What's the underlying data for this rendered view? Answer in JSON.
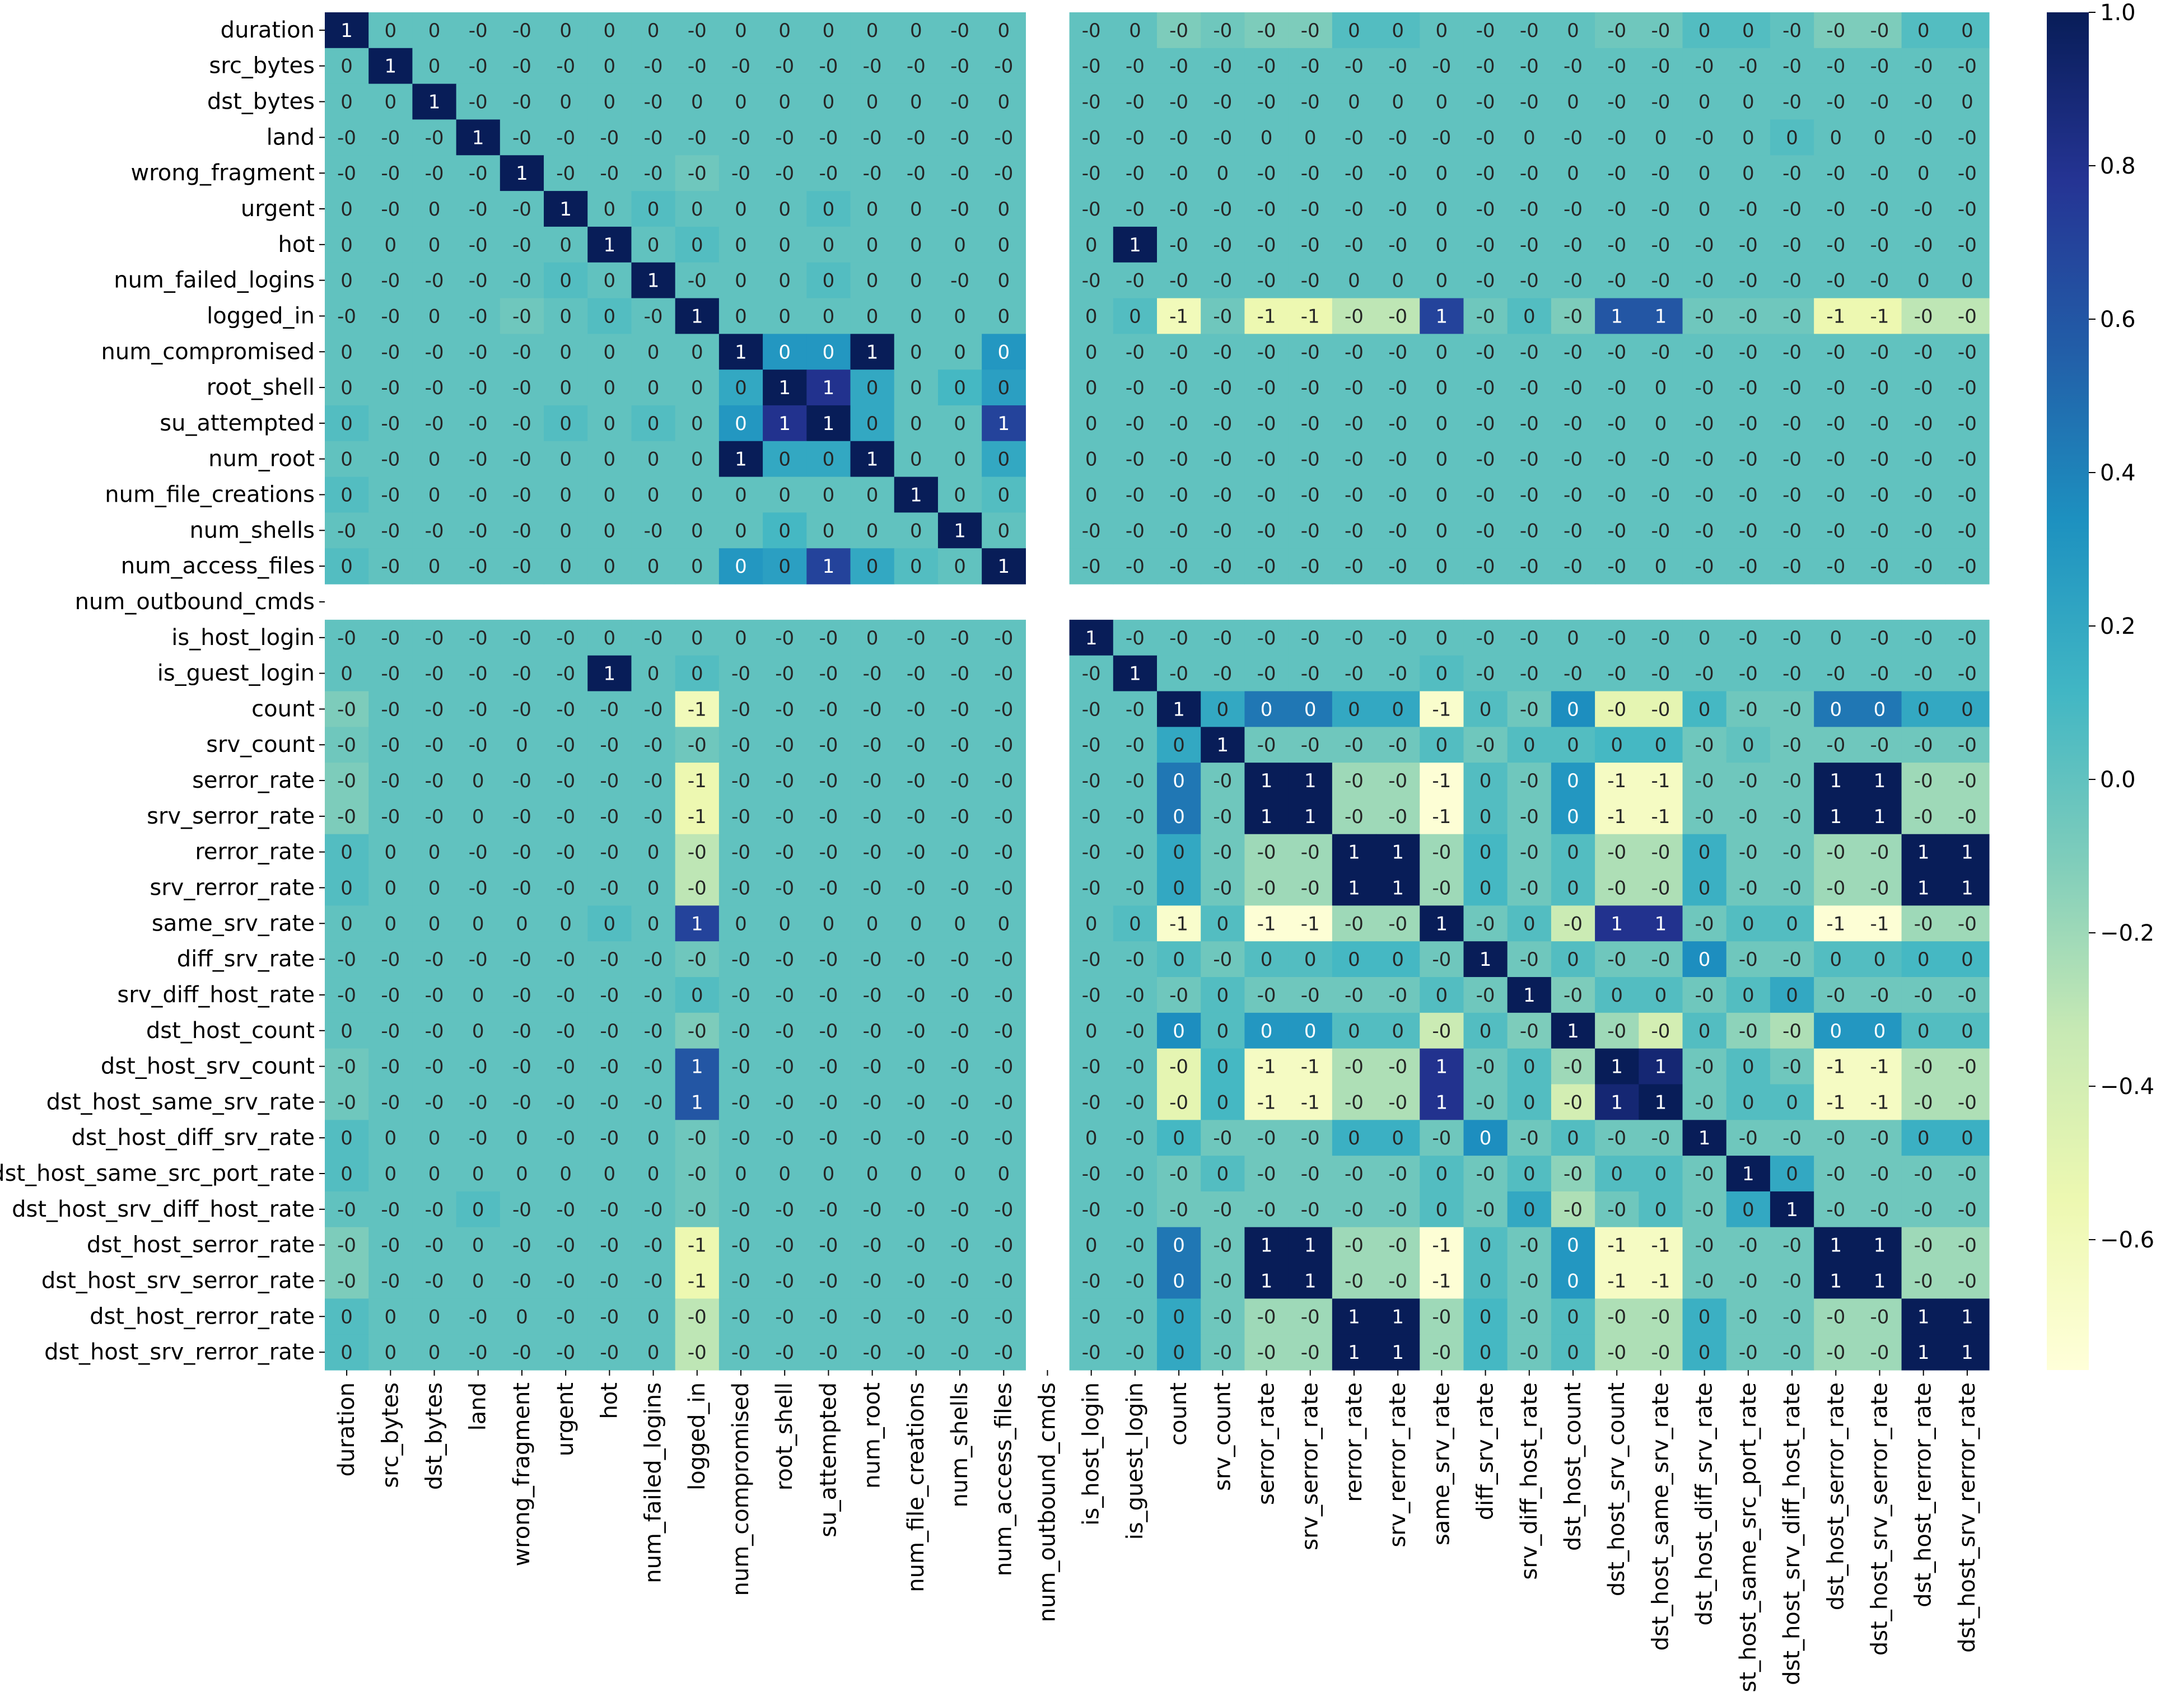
{
  "chart_data": {
    "type": "heatmap",
    "title": "",
    "colormap": "YlGnBu",
    "colorbar": {
      "vmin": -0.77,
      "vmax": 1.0,
      "ticks": [
        1.0,
        0.8,
        0.6,
        0.4,
        0.2,
        0.0,
        -0.2,
        -0.4,
        -0.6
      ],
      "tick_labels": [
        "1.0",
        "0.8",
        "0.6",
        "0.4",
        "0.2",
        "0.0",
        "−0.2",
        "−0.4",
        "−0.6"
      ]
    },
    "nan_index": 16,
    "labels": [
      "duration",
      "src_bytes",
      "dst_bytes",
      "land",
      "wrong_fragment",
      "urgent",
      "hot",
      "num_failed_logins",
      "logged_in",
      "num_compromised",
      "root_shell",
      "su_attempted",
      "num_root",
      "num_file_creations",
      "num_shells",
      "num_access_files",
      "num_outbound_cmds",
      "is_host_login",
      "is_guest_login",
      "count",
      "srv_count",
      "serror_rate",
      "srv_serror_rate",
      "rerror_rate",
      "srv_rerror_rate",
      "same_srv_rate",
      "diff_srv_rate",
      "srv_diff_host_rate",
      "dst_host_count",
      "dst_host_srv_count",
      "dst_host_same_srv_rate",
      "dst_host_diff_srv_rate",
      "dst_host_same_src_port_rate",
      "dst_host_srv_diff_host_rate",
      "dst_host_serror_rate",
      "dst_host_srv_serror_rate",
      "dst_host_rerror_rate",
      "dst_host_srv_rerror_rate"
    ],
    "values": [
      [
        1,
        0,
        0,
        0,
        0,
        0,
        0,
        0,
        0,
        0,
        0,
        0,
        0,
        0,
        0,
        0,
        null,
        0,
        0,
        -0.1,
        -0.05,
        -0.1,
        -0.1,
        0.05,
        0.05,
        0,
        0,
        0,
        0,
        -0.05,
        -0.05,
        0.05,
        0.05,
        0,
        -0.1,
        -0.1,
        0.05,
        0.05
      ],
      [
        0,
        1,
        0,
        0,
        0,
        0,
        0,
        0,
        0,
        0,
        0,
        0,
        0,
        0,
        0,
        0,
        null,
        0,
        0,
        0,
        0,
        0,
        0,
        0,
        0,
        0,
        0,
        0,
        0,
        0,
        0,
        0,
        0,
        0,
        0,
        0,
        0,
        0
      ],
      [
        0,
        0,
        1,
        0,
        0,
        0,
        0,
        0,
        0,
        0,
        0,
        0,
        0,
        0,
        0,
        0,
        null,
        0,
        0,
        0,
        0,
        0,
        0,
        0,
        0,
        0,
        0,
        0,
        0,
        0,
        0,
        0,
        0,
        0,
        0,
        0,
        0,
        0
      ],
      [
        0,
        0,
        0,
        1,
        0,
        0,
        0,
        0,
        0,
        0,
        0,
        0,
        0,
        0,
        0,
        0,
        null,
        0,
        0,
        0,
        0,
        0,
        0,
        0,
        0,
        0,
        0,
        0,
        0,
        0,
        0,
        0,
        0,
        0.05,
        0,
        0,
        0,
        0
      ],
      [
        0,
        0,
        0,
        0,
        1,
        0,
        0,
        0,
        -0.05,
        0,
        0,
        0,
        0,
        0,
        0,
        0,
        null,
        0,
        0,
        0,
        0,
        0,
        0,
        0,
        0,
        0,
        0,
        0,
        0,
        0,
        0,
        0,
        0,
        0,
        0,
        0,
        0,
        0
      ],
      [
        0,
        0,
        0,
        0,
        0,
        1,
        0,
        0.05,
        0,
        0,
        0,
        0.05,
        0,
        0,
        0,
        0,
        null,
        0,
        0,
        0,
        0,
        0,
        0,
        0,
        0,
        0,
        0,
        0,
        0,
        0,
        0,
        0,
        0,
        0,
        0,
        0,
        0,
        0
      ],
      [
        0,
        0,
        0,
        0,
        0,
        0,
        1,
        0,
        0.05,
        0,
        0,
        0,
        0,
        0,
        0,
        0,
        null,
        0,
        1,
        0,
        0,
        0,
        0,
        0,
        0,
        0,
        0,
        0,
        0,
        0,
        0,
        0,
        0,
        0,
        0,
        0,
        0,
        0
      ],
      [
        0,
        0,
        0,
        0,
        0,
        0.05,
        0,
        1,
        0,
        0,
        0,
        0.05,
        0,
        0,
        0,
        0,
        null,
        0,
        0,
        0,
        0,
        0,
        0,
        0,
        0,
        0,
        0,
        0,
        0,
        0,
        0,
        0,
        0,
        0,
        0,
        0,
        0,
        0
      ],
      [
        0,
        0,
        0,
        0,
        -0.05,
        0,
        0.05,
        0,
        1,
        0,
        0,
        0,
        0,
        0,
        0,
        0,
        null,
        0,
        0.05,
        -0.6,
        -0.05,
        -0.55,
        -0.55,
        -0.3,
        -0.3,
        0.7,
        -0.05,
        0.05,
        -0.1,
        0.6,
        0.6,
        -0.05,
        -0.05,
        -0.05,
        -0.55,
        -0.55,
        -0.3,
        -0.3
      ],
      [
        0,
        0,
        0,
        0,
        0,
        0,
        0,
        0,
        0,
        1,
        0.3,
        0.3,
        1,
        0,
        0,
        0.3,
        null,
        0,
        0,
        0,
        0,
        0,
        0,
        0,
        0,
        0,
        0,
        0,
        0,
        0,
        0,
        0,
        0,
        0,
        0,
        0,
        0,
        0
      ],
      [
        0,
        0,
        0,
        0,
        0,
        0,
        0,
        0,
        0,
        0.2,
        1,
        0.8,
        0.2,
        0,
        0.1,
        0.25,
        null,
        0,
        0,
        0,
        0,
        0,
        0,
        0,
        0,
        0,
        0,
        0,
        0,
        0,
        0,
        0,
        0,
        0,
        0,
        0,
        0,
        0
      ],
      [
        0.05,
        0,
        0,
        0,
        0,
        0.05,
        0,
        0.05,
        0,
        0.3,
        0.8,
        1,
        0.2,
        0,
        0,
        0.7,
        null,
        0,
        0,
        0,
        0,
        0,
        0,
        0,
        0,
        0,
        0,
        0,
        0,
        0,
        0,
        0,
        0,
        0,
        0,
        0,
        0,
        0
      ],
      [
        0,
        0,
        0,
        0,
        0,
        0,
        0,
        0,
        0,
        1,
        0.2,
        0.2,
        1,
        0,
        0,
        0.2,
        null,
        0,
        0,
        0,
        0,
        0,
        0,
        0,
        0,
        0,
        0,
        0,
        0,
        0,
        0,
        0,
        0,
        0,
        0,
        0,
        0,
        0
      ],
      [
        0.05,
        0,
        0,
        0,
        0,
        0,
        0,
        0,
        0,
        0,
        0,
        0,
        0,
        1,
        0,
        0.05,
        null,
        0,
        0,
        0,
        0,
        0,
        0,
        0,
        0,
        0,
        0,
        0,
        0,
        0,
        0,
        0,
        0,
        0,
        0,
        0,
        0,
        0
      ],
      [
        0,
        0,
        0,
        0,
        0,
        0,
        0,
        0,
        0,
        0,
        0.1,
        0,
        0,
        0,
        1,
        0,
        null,
        0,
        0,
        0,
        0,
        0,
        0,
        0,
        0,
        0,
        0,
        0,
        0,
        0,
        0,
        0,
        0,
        0,
        0,
        0,
        0,
        0
      ],
      [
        0.05,
        0,
        0,
        0,
        0,
        0,
        0,
        0,
        0,
        0.3,
        0.25,
        0.7,
        0.2,
        0.05,
        0,
        1,
        null,
        0,
        0,
        0,
        0,
        0,
        0,
        0,
        0,
        0,
        0,
        0,
        0,
        0,
        0,
        0,
        0,
        0,
        0,
        0,
        0,
        0
      ],
      [
        null,
        null,
        null,
        null,
        null,
        null,
        null,
        null,
        null,
        null,
        null,
        null,
        null,
        null,
        null,
        null,
        null,
        null,
        null,
        null,
        null,
        null,
        null,
        null,
        null,
        null,
        null,
        null,
        null,
        null,
        null,
        null,
        null,
        null,
        null,
        null,
        null,
        null
      ],
      [
        0,
        0,
        0,
        0,
        0,
        0,
        0,
        0,
        0,
        0,
        0,
        0,
        0,
        0,
        0,
        0,
        null,
        1,
        0,
        0,
        0,
        0,
        0,
        0,
        0,
        0,
        0,
        0,
        0,
        0,
        0,
        0,
        0,
        0,
        0,
        0,
        0,
        0
      ],
      [
        0,
        0,
        0,
        0,
        0,
        0,
        1,
        0,
        0.05,
        0,
        0,
        0,
        0,
        0,
        0,
        0,
        null,
        0,
        1,
        0,
        0,
        0,
        0,
        0,
        0,
        0.05,
        0,
        0,
        0,
        0,
        0,
        0,
        0,
        0,
        0,
        0,
        0,
        0
      ],
      [
        -0.1,
        0,
        0,
        0,
        0,
        0,
        0,
        0,
        -0.6,
        0,
        0,
        0,
        0,
        0,
        0,
        0,
        null,
        0,
        0,
        1,
        0.2,
        0.45,
        0.45,
        0.2,
        0.2,
        -0.7,
        0.05,
        -0.05,
        0.35,
        -0.5,
        -0.5,
        0.1,
        -0.05,
        -0.05,
        0.45,
        0.45,
        0.2,
        0.2
      ],
      [
        -0.05,
        0,
        0,
        0,
        0,
        0,
        0,
        0,
        -0.05,
        0,
        0,
        0,
        0,
        0,
        0,
        0,
        null,
        0,
        0,
        0.2,
        1,
        -0.05,
        -0.05,
        -0.05,
        -0.05,
        0.05,
        -0.05,
        0.05,
        0.05,
        0.1,
        0.1,
        -0.05,
        0,
        -0.05,
        -0.05,
        -0.05,
        -0.05,
        -0.05
      ],
      [
        -0.1,
        0,
        0,
        0,
        0,
        0,
        0,
        0,
        -0.55,
        0,
        0,
        0,
        0,
        0,
        0,
        0,
        null,
        0,
        0,
        0.45,
        -0.05,
        1,
        1,
        -0.2,
        -0.2,
        -0.75,
        0.05,
        -0.05,
        0.3,
        -0.65,
        -0.65,
        -0.05,
        -0.05,
        -0.05,
        1,
        1,
        -0.2,
        -0.2
      ],
      [
        -0.1,
        0,
        0,
        0,
        0,
        0,
        0,
        0,
        -0.55,
        0,
        0,
        0,
        0,
        0,
        0,
        0,
        null,
        0,
        0,
        0.45,
        -0.05,
        1,
        1,
        -0.2,
        -0.2,
        -0.75,
        0.05,
        -0.05,
        0.3,
        -0.65,
        -0.65,
        -0.05,
        -0.05,
        -0.05,
        1,
        1,
        -0.2,
        -0.2
      ],
      [
        0.05,
        0,
        0,
        0,
        0,
        0,
        0,
        0,
        -0.3,
        0,
        0,
        0,
        0,
        0,
        0,
        0,
        null,
        0,
        0,
        0.2,
        -0.05,
        -0.2,
        -0.2,
        1,
        1,
        -0.2,
        0.1,
        -0.05,
        0.05,
        -0.25,
        -0.25,
        0.15,
        -0.05,
        -0.05,
        -0.2,
        -0.2,
        1,
        1
      ],
      [
        0.05,
        0,
        0,
        0,
        0,
        0,
        0,
        0,
        -0.3,
        0,
        0,
        0,
        0,
        0,
        0,
        0,
        null,
        0,
        0,
        0.2,
        -0.05,
        -0.2,
        -0.2,
        1,
        1,
        -0.2,
        0.1,
        -0.05,
        0.05,
        -0.25,
        -0.25,
        0.15,
        -0.05,
        -0.05,
        -0.2,
        -0.2,
        1,
        1
      ],
      [
        0,
        0,
        0,
        0,
        0,
        0,
        0.05,
        0,
        0.7,
        0,
        0,
        0,
        0,
        0,
        0,
        0,
        null,
        0,
        0.05,
        -0.7,
        0.05,
        -0.75,
        -0.75,
        -0.2,
        -0.2,
        1,
        -0.05,
        0.05,
        -0.35,
        0.8,
        0.8,
        -0.05,
        0.05,
        0.05,
        -0.75,
        -0.75,
        -0.2,
        -0.2
      ],
      [
        0,
        0,
        0,
        0,
        0,
        0,
        0,
        0,
        -0.05,
        0,
        0,
        0,
        0,
        0,
        0,
        0,
        null,
        0,
        0,
        0.05,
        -0.05,
        0.05,
        0.05,
        0.1,
        0.1,
        -0.05,
        1,
        -0.05,
        0.05,
        -0.05,
        -0.05,
        0.35,
        -0.05,
        -0.05,
        0.05,
        0.05,
        0.1,
        0.1
      ],
      [
        0,
        0,
        0,
        0,
        0,
        0,
        0,
        0,
        0.05,
        0,
        0,
        0,
        0,
        0,
        0,
        0,
        null,
        0,
        0,
        -0.05,
        0.05,
        -0.05,
        -0.05,
        -0.05,
        -0.05,
        0.05,
        -0.05,
        1,
        -0.1,
        0.05,
        0.05,
        -0.05,
        0.05,
        0.2,
        -0.05,
        -0.05,
        -0.05,
        -0.05
      ],
      [
        0,
        0,
        0,
        0,
        0,
        0,
        0,
        0,
        -0.1,
        0,
        0,
        0,
        0,
        0,
        0,
        0,
        null,
        0,
        0,
        0.35,
        0.05,
        0.3,
        0.3,
        0.05,
        0.05,
        -0.35,
        0.05,
        -0.1,
        1,
        -0.2,
        -0.4,
        0.05,
        -0.15,
        -0.25,
        0.3,
        0.3,
        0.05,
        0.05
      ],
      [
        -0.05,
        0,
        0,
        0,
        0,
        0,
        0,
        0,
        0.6,
        0,
        0,
        0,
        0,
        0,
        0,
        0,
        null,
        0,
        0,
        -0.5,
        0.1,
        -0.65,
        -0.65,
        -0.25,
        -0.25,
        0.8,
        -0.05,
        0.05,
        -0.2,
        1,
        0.9,
        -0.05,
        0.05,
        -0.05,
        -0.65,
        -0.65,
        -0.25,
        -0.25
      ],
      [
        -0.05,
        0,
        0,
        0,
        0,
        0,
        0,
        0,
        0.6,
        0,
        0,
        0,
        0,
        0,
        0,
        0,
        null,
        0,
        0,
        -0.5,
        0.1,
        -0.65,
        -0.65,
        -0.25,
        -0.25,
        0.8,
        -0.05,
        0.05,
        -0.4,
        0.9,
        1,
        -0.05,
        0.05,
        0.05,
        -0.65,
        -0.65,
        -0.25,
        -0.25
      ],
      [
        0.05,
        0,
        0,
        0,
        0,
        0,
        0,
        0,
        -0.05,
        0,
        0,
        0,
        0,
        0,
        0,
        0,
        null,
        0,
        0,
        0.1,
        -0.05,
        -0.05,
        -0.05,
        0.15,
        0.15,
        -0.05,
        0.35,
        -0.05,
        0.05,
        -0.05,
        -0.05,
        1,
        -0.05,
        -0.05,
        -0.05,
        -0.05,
        0.15,
        0.15
      ],
      [
        0.05,
        0,
        0,
        0,
        0,
        0,
        0,
        0,
        -0.05,
        0,
        0,
        0,
        0,
        0,
        0,
        0,
        null,
        0,
        0,
        -0.05,
        0.05,
        -0.05,
        -0.05,
        -0.05,
        -0.05,
        0.05,
        -0.05,
        0.05,
        -0.15,
        0.05,
        0.05,
        -0.05,
        1,
        0.2,
        -0.05,
        -0.05,
        -0.05,
        -0.05
      ],
      [
        0,
        0,
        0,
        0.05,
        0,
        0,
        0,
        0,
        -0.05,
        0,
        0,
        0,
        0,
        0,
        0,
        0,
        null,
        0,
        0,
        -0.05,
        -0.05,
        -0.05,
        -0.05,
        -0.05,
        -0.05,
        0.05,
        -0.05,
        0.2,
        -0.25,
        -0.05,
        0.05,
        -0.05,
        0.2,
        1,
        -0.05,
        -0.05,
        -0.05,
        -0.05
      ],
      [
        -0.1,
        0,
        0,
        0,
        0,
        0,
        0,
        0,
        -0.55,
        0,
        0,
        0,
        0,
        0,
        0,
        0,
        null,
        0,
        0,
        0.45,
        -0.05,
        1,
        1,
        -0.2,
        -0.2,
        -0.75,
        0.05,
        -0.05,
        0.3,
        -0.65,
        -0.65,
        -0.05,
        -0.05,
        -0.05,
        1,
        1,
        -0.2,
        -0.2
      ],
      [
        -0.1,
        0,
        0,
        0,
        0,
        0,
        0,
        0,
        -0.55,
        0,
        0,
        0,
        0,
        0,
        0,
        0,
        null,
        0,
        0,
        0.45,
        -0.05,
        1,
        1,
        -0.2,
        -0.2,
        -0.75,
        0.05,
        -0.05,
        0.3,
        -0.65,
        -0.65,
        -0.05,
        -0.05,
        -0.05,
        1,
        1,
        -0.2,
        -0.2
      ],
      [
        0.05,
        0,
        0,
        0,
        0,
        0,
        0,
        0,
        -0.3,
        0,
        0,
        0,
        0,
        0,
        0,
        0,
        null,
        0,
        0,
        0.2,
        -0.05,
        -0.2,
        -0.2,
        1,
        1,
        -0.2,
        0.1,
        -0.05,
        0.05,
        -0.25,
        -0.25,
        0.15,
        -0.05,
        -0.05,
        -0.2,
        -0.2,
        1,
        1
      ],
      [
        0.05,
        0,
        0,
        0,
        0,
        0,
        0,
        0,
        -0.3,
        0,
        0,
        0,
        0,
        0,
        0,
        0,
        null,
        0,
        0,
        0.2,
        -0.05,
        -0.2,
        -0.2,
        1,
        1,
        -0.2,
        0.1,
        -0.05,
        0.05,
        -0.25,
        -0.25,
        0.15,
        -0.05,
        -0.05,
        -0.2,
        -0.2,
        1,
        1
      ]
    ]
  }
}
